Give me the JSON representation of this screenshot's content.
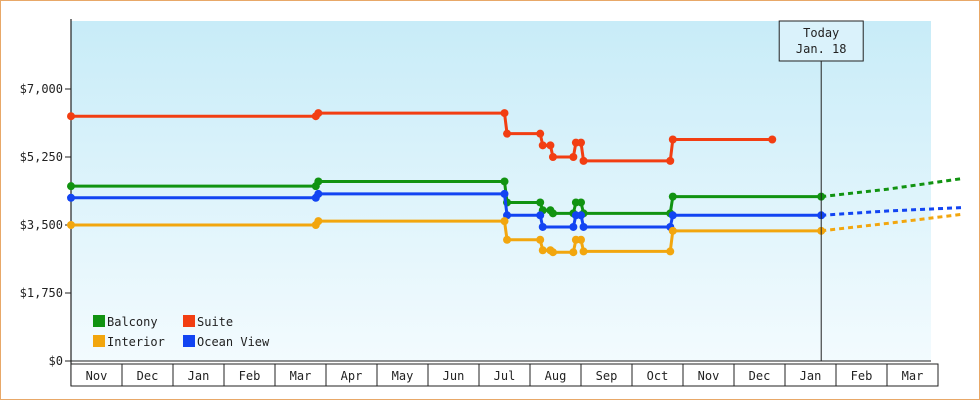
{
  "chart_data": {
    "type": "line",
    "title": "",
    "xlabel": "",
    "ylabel": "",
    "ylim": [
      0,
      8750
    ],
    "y_ticks": [
      {
        "value": 0,
        "label": "$0"
      },
      {
        "value": 1750,
        "label": "$1,750"
      },
      {
        "value": 3500,
        "label": "$3,500"
      },
      {
        "value": 5250,
        "label": "$5,250"
      },
      {
        "value": 7000,
        "label": "$7,000"
      }
    ],
    "x_months": [
      "Nov",
      "Dec",
      "Jan",
      "Feb",
      "Mar",
      "Apr",
      "May",
      "Jun",
      "Jul",
      "Aug",
      "Sep",
      "Oct",
      "Nov",
      "Dec",
      "Jan",
      "Feb",
      "Mar"
    ],
    "grid": false,
    "today_marker": {
      "lines": [
        "Today",
        "Jan. 18"
      ],
      "x": 14.71
    },
    "legend": {
      "placement": "bottom-left",
      "entries": [
        {
          "name": "Balcony",
          "color": "#119311"
        },
        {
          "name": "Suite",
          "color": "#f23e12"
        },
        {
          "name": "Interior",
          "color": "#f2a60e"
        },
        {
          "name": "Ocean View",
          "color": "#1244f2"
        }
      ]
    },
    "series": [
      {
        "name": "Suite",
        "color": "#f23e12",
        "points": [
          [
            0.0,
            6300
          ],
          [
            4.8,
            6300
          ],
          [
            4.85,
            6380
          ],
          [
            8.5,
            6380
          ],
          [
            8.55,
            5850
          ],
          [
            9.2,
            5850
          ],
          [
            9.25,
            5550
          ],
          [
            9.4,
            5550
          ],
          [
            9.45,
            5250
          ],
          [
            9.85,
            5250
          ],
          [
            9.9,
            5620
          ],
          [
            10.0,
            5620
          ],
          [
            10.05,
            5150
          ],
          [
            11.75,
            5150
          ],
          [
            11.8,
            5700
          ],
          [
            13.75,
            5700
          ]
        ],
        "forecast": []
      },
      {
        "name": "Balcony",
        "color": "#119311",
        "points": [
          [
            0.0,
            4500
          ],
          [
            4.8,
            4500
          ],
          [
            4.85,
            4620
          ],
          [
            8.5,
            4620
          ],
          [
            8.55,
            4080
          ],
          [
            9.2,
            4080
          ],
          [
            9.25,
            3880
          ],
          [
            9.4,
            3880
          ],
          [
            9.45,
            3800
          ],
          [
            9.85,
            3800
          ],
          [
            9.9,
            4080
          ],
          [
            10.0,
            4080
          ],
          [
            10.05,
            3800
          ],
          [
            11.75,
            3800
          ],
          [
            11.8,
            4230
          ],
          [
            14.71,
            4230
          ]
        ],
        "forecast": [
          [
            14.71,
            4230
          ],
          [
            16.0,
            4420
          ],
          [
            17.5,
            4700
          ]
        ]
      },
      {
        "name": "Ocean View",
        "color": "#1244f2",
        "points": [
          [
            0.0,
            4200
          ],
          [
            4.8,
            4200
          ],
          [
            4.85,
            4300
          ],
          [
            8.5,
            4300
          ],
          [
            8.55,
            3750
          ],
          [
            9.2,
            3750
          ],
          [
            9.25,
            3450
          ],
          [
            9.85,
            3450
          ],
          [
            9.9,
            3750
          ],
          [
            10.0,
            3750
          ],
          [
            10.05,
            3450
          ],
          [
            11.75,
            3450
          ],
          [
            11.8,
            3750
          ],
          [
            14.71,
            3750
          ]
        ],
        "forecast": [
          [
            14.71,
            3750
          ],
          [
            16.0,
            3860
          ],
          [
            17.5,
            3950
          ]
        ]
      },
      {
        "name": "Interior",
        "color": "#f2a60e",
        "points": [
          [
            0.0,
            3500
          ],
          [
            4.8,
            3500
          ],
          [
            4.85,
            3600
          ],
          [
            8.5,
            3600
          ],
          [
            8.55,
            3120
          ],
          [
            9.2,
            3120
          ],
          [
            9.25,
            2850
          ],
          [
            9.4,
            2850
          ],
          [
            9.45,
            2800
          ],
          [
            9.85,
            2800
          ],
          [
            9.9,
            3120
          ],
          [
            10.0,
            3120
          ],
          [
            10.05,
            2820
          ],
          [
            11.75,
            2820
          ],
          [
            11.8,
            3350
          ],
          [
            14.71,
            3350
          ]
        ],
        "forecast": [
          [
            14.71,
            3350
          ],
          [
            16.0,
            3540
          ],
          [
            17.5,
            3780
          ]
        ]
      }
    ],
    "colors": {
      "bg_top": "#c8ecf8",
      "bg_bottom": "#f3fbfe",
      "frame": "#e8a868"
    }
  }
}
